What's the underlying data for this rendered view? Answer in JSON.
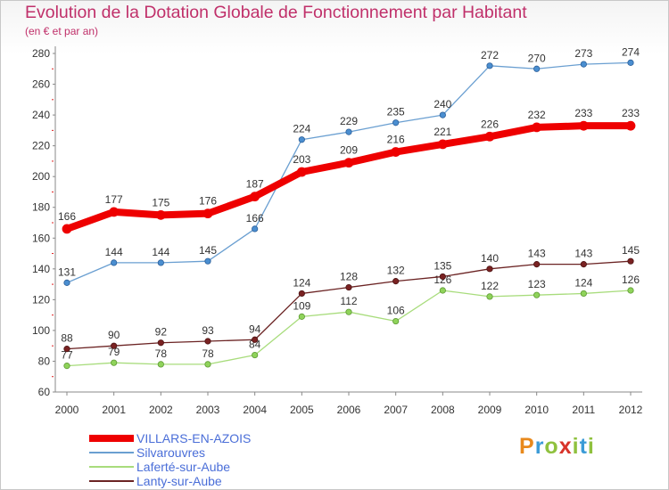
{
  "title": "Evolution de la Dotation Globale de Fonctionnement par Habitant",
  "subtitle": "(en € et par an)",
  "logo_text": "Proxiti",
  "chart_data": {
    "type": "line",
    "title": "Evolution de la Dotation Globale de Fonctionnement par Habitant",
    "subtitle": "(en € et par an)",
    "xlabel": "",
    "ylabel": "",
    "x": [
      2000,
      2001,
      2002,
      2003,
      2004,
      2005,
      2006,
      2007,
      2008,
      2009,
      2010,
      2011,
      2012
    ],
    "ylim": [
      60,
      280
    ],
    "y_ticks": [
      60,
      80,
      100,
      120,
      140,
      160,
      180,
      200,
      220,
      240,
      260,
      280
    ],
    "grid": false,
    "legend_position": "bottom-left",
    "series": [
      {
        "name": "VILLARS-EN-AZOIS",
        "color": "#ee0000",
        "values": [
          166,
          177,
          175,
          176,
          187,
          203,
          209,
          216,
          221,
          226,
          232,
          233,
          233
        ]
      },
      {
        "name": "Silvarouvres",
        "color": "#6a9fd1",
        "values": [
          131,
          144,
          144,
          145,
          166,
          224,
          229,
          235,
          240,
          272,
          270,
          273,
          274
        ]
      },
      {
        "name": "Laferté-sur-Aube",
        "color": "#a8dc7c",
        "values": [
          77,
          79,
          78,
          78,
          84,
          109,
          112,
          106,
          126,
          122,
          123,
          124,
          126
        ]
      },
      {
        "name": "Lanty-sur-Aube",
        "color": "#6b2323",
        "values": [
          88,
          90,
          92,
          93,
          94,
          124,
          128,
          132,
          135,
          140,
          143,
          143,
          145
        ]
      }
    ]
  }
}
